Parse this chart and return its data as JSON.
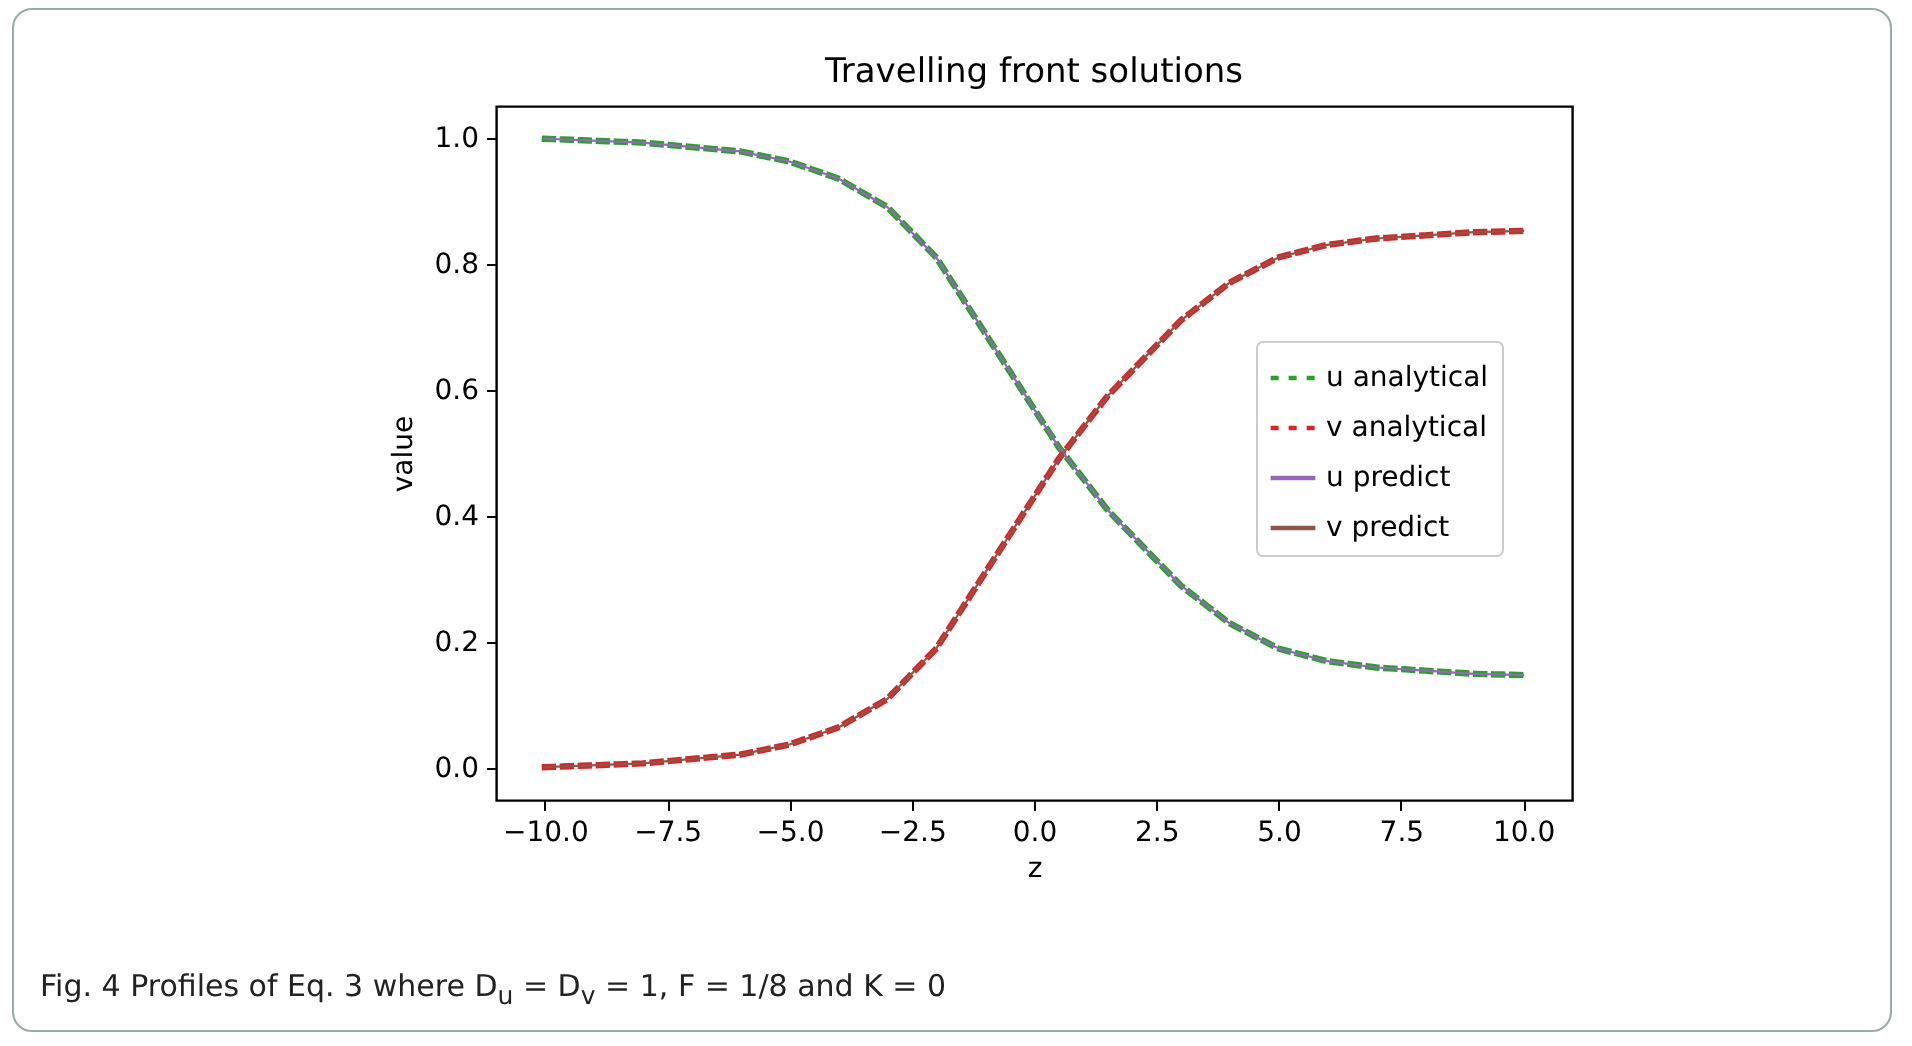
{
  "chart_data": {
    "type": "line",
    "title": "Travelling front solutions",
    "xlabel": "z",
    "ylabel": "value",
    "x": [
      -10,
      -8,
      -6,
      -5,
      -4,
      -3,
      -2.5,
      -2,
      -1.5,
      -1,
      -0.5,
      0,
      0.5,
      1,
      1.5,
      2,
      2.5,
      3,
      3.5,
      4,
      5,
      6,
      7,
      8,
      9,
      10
    ],
    "series": [
      {
        "name": "u analytical",
        "color": "#2ca02c",
        "line_style": "dashed",
        "values": [
          0.998,
          0.992,
          0.978,
          0.962,
          0.935,
          0.89,
          0.85,
          0.81,
          0.75,
          0.69,
          0.63,
          0.57,
          0.51,
          0.46,
          0.41,
          0.37,
          0.33,
          0.29,
          0.26,
          0.23,
          0.19,
          0.17,
          0.16,
          0.155,
          0.15,
          0.148
        ]
      },
      {
        "name": "v analytical",
        "color": "#d62728",
        "line_style": "dashed",
        "values": [
          0.002,
          0.008,
          0.022,
          0.038,
          0.065,
          0.11,
          0.15,
          0.19,
          0.25,
          0.31,
          0.37,
          0.43,
          0.49,
          0.54,
          0.59,
          0.63,
          0.67,
          0.71,
          0.74,
          0.77,
          0.81,
          0.83,
          0.84,
          0.845,
          0.85,
          0.852
        ]
      },
      {
        "name": "u predict",
        "color": "#9467bd",
        "line_style": "solid",
        "values": [
          0.998,
          0.992,
          0.978,
          0.962,
          0.935,
          0.89,
          0.85,
          0.81,
          0.75,
          0.69,
          0.63,
          0.57,
          0.51,
          0.46,
          0.41,
          0.37,
          0.33,
          0.29,
          0.26,
          0.23,
          0.19,
          0.17,
          0.16,
          0.155,
          0.15,
          0.148
        ]
      },
      {
        "name": "v predict",
        "color": "#8c564b",
        "line_style": "solid",
        "values": [
          0.002,
          0.008,
          0.022,
          0.038,
          0.065,
          0.11,
          0.15,
          0.19,
          0.25,
          0.31,
          0.37,
          0.43,
          0.49,
          0.54,
          0.59,
          0.63,
          0.67,
          0.71,
          0.74,
          0.77,
          0.81,
          0.83,
          0.84,
          0.845,
          0.85,
          0.852
        ]
      }
    ],
    "xlim": [
      -11,
      11
    ],
    "ylim": [
      -0.05,
      1.05
    ],
    "xticks": [
      {
        "value": -10,
        "label": "−10.0"
      },
      {
        "value": -7.5,
        "label": "−7.5"
      },
      {
        "value": -5,
        "label": "−5.0"
      },
      {
        "value": -2.5,
        "label": "−2.5"
      },
      {
        "value": 0,
        "label": "0.0"
      },
      {
        "value": 2.5,
        "label": "2.5"
      },
      {
        "value": 5,
        "label": "5.0"
      },
      {
        "value": 7.5,
        "label": "7.5"
      },
      {
        "value": 10,
        "label": "10.0"
      }
    ],
    "yticks": [
      {
        "value": 0,
        "label": "0.0"
      },
      {
        "value": 0.2,
        "label": "0.2"
      },
      {
        "value": 0.4,
        "label": "0.4"
      },
      {
        "value": 0.6,
        "label": "0.6"
      },
      {
        "value": 0.8,
        "label": "0.8"
      },
      {
        "value": 1,
        "label": "1.0"
      }
    ],
    "legend": "right",
    "annotations": [
      "Fig. 4 Profiles of Eq. 3 where D$_{u}$ = D$_{v}$ = 1, F = 1/8 and K = 0"
    ]
  }
}
